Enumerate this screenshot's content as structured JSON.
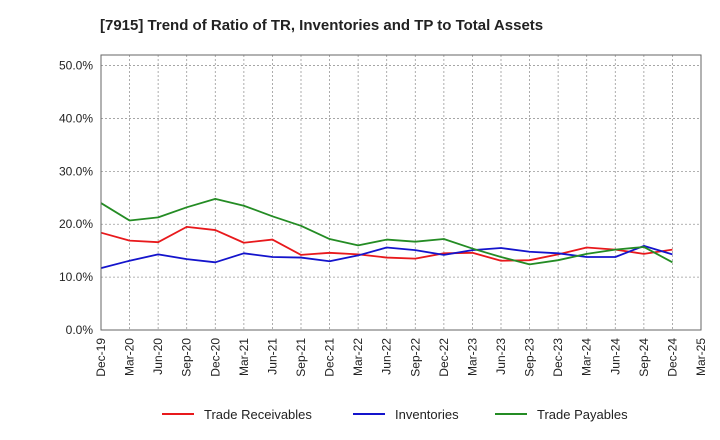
{
  "chart_data": {
    "type": "line",
    "title": "[7915]  Trend of Ratio of TR, Inventories and TP to Total Assets",
    "xlabel": "",
    "ylabel": "",
    "ylim": [
      0,
      52
    ],
    "y_ticks": [
      "0.0%",
      "10.0%",
      "20.0%",
      "30.0%",
      "40.0%",
      "50.0%"
    ],
    "y_tick_values": [
      0,
      10,
      20,
      30,
      40,
      50
    ],
    "x_ticks": [
      "Dec-19",
      "Mar-20",
      "Jun-20",
      "Sep-20",
      "Dec-20",
      "Mar-21",
      "Jun-21",
      "Sep-21",
      "Dec-21",
      "Mar-22",
      "Jun-22",
      "Sep-22",
      "Dec-22",
      "Mar-23",
      "Jun-23",
      "Sep-23",
      "Dec-23",
      "Mar-24",
      "Jun-24",
      "Sep-24",
      "Dec-24",
      "Mar-25"
    ],
    "grid": true,
    "legend_position": "bottom",
    "x": [
      "Dec-19",
      "Mar-20",
      "Jun-20",
      "Sep-20",
      "Dec-20",
      "Mar-21",
      "Jun-21",
      "Sep-21",
      "Dec-21",
      "Mar-22",
      "Jun-22",
      "Sep-22",
      "Dec-22",
      "Mar-23",
      "Jun-23",
      "Sep-23",
      "Dec-23",
      "Mar-24",
      "Jun-24",
      "Sep-24",
      "Dec-24"
    ],
    "series": [
      {
        "name": "Trade Receivables",
        "color": "#e8191c",
        "values": [
          18.4,
          16.9,
          16.6,
          19.5,
          18.9,
          16.5,
          17.1,
          14.2,
          14.6,
          14.3,
          13.7,
          13.5,
          14.5,
          14.6,
          13.1,
          13.2,
          14.3,
          15.6,
          15.2,
          14.4,
          15.2
        ]
      },
      {
        "name": "Inventories",
        "color": "#1414cc",
        "values": [
          11.7,
          13.1,
          14.3,
          13.4,
          12.8,
          14.5,
          13.8,
          13.7,
          13.0,
          14.1,
          15.6,
          15.1,
          14.2,
          15.1,
          15.5,
          14.8,
          14.5,
          13.8,
          13.8,
          15.9,
          14.3
        ]
      },
      {
        "name": "Trade Payables",
        "color": "#248c24",
        "values": [
          24.0,
          20.7,
          21.3,
          23.2,
          24.8,
          23.5,
          21.5,
          19.7,
          17.2,
          16.0,
          17.1,
          16.7,
          17.2,
          15.4,
          13.8,
          12.4,
          13.2,
          14.4,
          15.2,
          15.7,
          12.8
        ]
      }
    ]
  }
}
